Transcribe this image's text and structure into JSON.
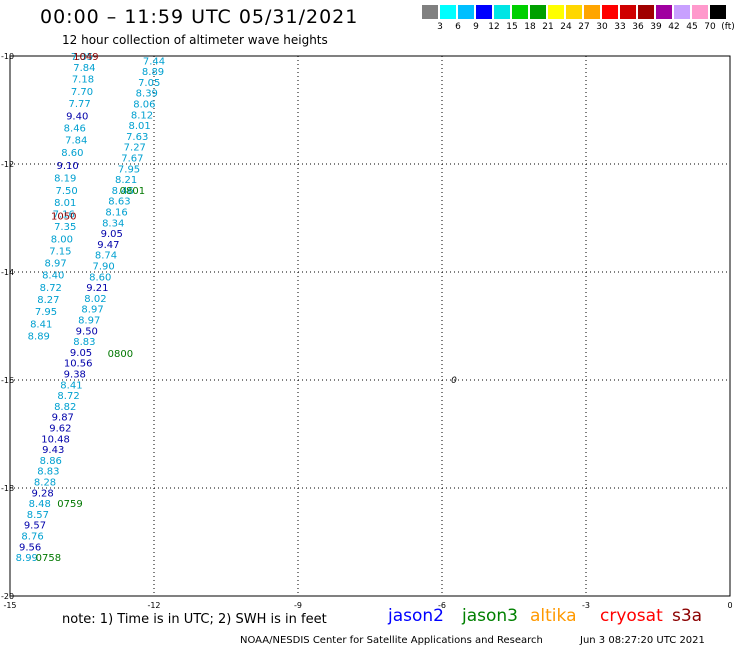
{
  "header": {
    "title": "00:00 – 11:59 UTC 05/31/2021",
    "subtitle": "12 hour collection of altimeter wave heights"
  },
  "legend": {
    "colors": [
      "#808080",
      "#00ffff",
      "#00bfff",
      "#0000ff",
      "#00e5e5",
      "#00d000",
      "#00a000",
      "#ffff00",
      "#ffd700",
      "#ffa500",
      "#ff0000",
      "#d00000",
      "#a00000",
      "#a000a0",
      "#c8a0ff",
      "#ff99cc",
      "#000000"
    ],
    "labels": [
      "3",
      "6",
      "9",
      "12",
      "15",
      "18",
      "21",
      "24",
      "27",
      "30",
      "33",
      "36",
      "39",
      "42",
      "45",
      "70",
      "(ft)"
    ]
  },
  "map": {
    "x_ticks": [
      "-15",
      "-12",
      "-9",
      "-6",
      "-3",
      "0"
    ],
    "y_ticks": [
      "-10",
      "-12",
      "-14",
      "-16",
      "-18",
      "-20"
    ],
    "marker_label": "0"
  },
  "chart_data": {
    "type": "scatter",
    "x_range": [
      -15,
      0
    ],
    "y_range": [
      -20,
      -10
    ],
    "grid": true,
    "text_color": "#00a0d0",
    "points": [
      {
        "x": -13.5,
        "y": -10.0,
        "v": "7.35",
        "c": "#00a0d0"
      },
      {
        "x": -13.45,
        "y": -10.2,
        "v": "7.84",
        "c": "#00a0d0"
      },
      {
        "x": -13.48,
        "y": -10.42,
        "v": "7.18",
        "c": "#00a0d0"
      },
      {
        "x": -13.5,
        "y": -10.65,
        "v": "7.70",
        "c": "#00a0d0"
      },
      {
        "x": -13.55,
        "y": -10.87,
        "v": "7.77",
        "c": "#00a0d0"
      },
      {
        "x": -13.6,
        "y": -11.1,
        "v": "9.40",
        "c": "#0000aa"
      },
      {
        "x": -13.65,
        "y": -11.32,
        "v": "8.46",
        "c": "#00a0d0"
      },
      {
        "x": -13.62,
        "y": -11.55,
        "v": "7.84",
        "c": "#00a0d0"
      },
      {
        "x": -13.7,
        "y": -11.78,
        "v": "8.60",
        "c": "#00a0d0"
      },
      {
        "x": -13.8,
        "y": -12.02,
        "v": "9.10",
        "c": "#0000aa"
      },
      {
        "x": -13.85,
        "y": -12.25,
        "v": "8.19",
        "c": "#00a0d0"
      },
      {
        "x": -13.82,
        "y": -12.48,
        "v": "7.50",
        "c": "#00a0d0"
      },
      {
        "x": -13.85,
        "y": -12.7,
        "v": "8.01",
        "c": "#00a0d0"
      },
      {
        "x": -13.88,
        "y": -12.92,
        "v": "7.16",
        "c": "#00a0d0"
      },
      {
        "x": -13.85,
        "y": -13.15,
        "v": "7.35",
        "c": "#00a0d0"
      },
      {
        "x": -13.92,
        "y": -13.38,
        "v": "8.00",
        "c": "#00a0d0"
      },
      {
        "x": -13.95,
        "y": -13.6,
        "v": "7.15",
        "c": "#00a0d0"
      },
      {
        "x": -14.05,
        "y": -13.82,
        "v": "8.97",
        "c": "#00a0d0"
      },
      {
        "x": -14.1,
        "y": -14.05,
        "v": "8.40",
        "c": "#00a0d0"
      },
      {
        "x": -14.15,
        "y": -14.28,
        "v": "8.72",
        "c": "#00a0d0"
      },
      {
        "x": -14.2,
        "y": -14.5,
        "v": "8.27",
        "c": "#00a0d0"
      },
      {
        "x": -14.25,
        "y": -14.72,
        "v": "7.95",
        "c": "#00a0d0"
      },
      {
        "x": -14.35,
        "y": -14.95,
        "v": "8.41",
        "c": "#00a0d0"
      },
      {
        "x": -14.4,
        "y": -15.18,
        "v": "8.89",
        "c": "#00a0d0"
      },
      {
        "x": -13.42,
        "y": -10.0,
        "v": "1049",
        "c": "#8b0000"
      },
      {
        "x": -13.88,
        "y": -12.95,
        "v": "1050",
        "c": "#8b0000"
      },
      {
        "x": -12.0,
        "y": -10.08,
        "v": "7.44",
        "c": "#00a0d0"
      },
      {
        "x": -12.02,
        "y": -10.28,
        "v": "8.89",
        "c": "#00a0d0"
      },
      {
        "x": -12.1,
        "y": -10.48,
        "v": "7.05",
        "c": "#00a0d0"
      },
      {
        "x": -12.15,
        "y": -10.68,
        "v": "8.39",
        "c": "#00a0d0"
      },
      {
        "x": -12.2,
        "y": -10.88,
        "v": "8.06",
        "c": "#00a0d0"
      },
      {
        "x": -12.25,
        "y": -11.08,
        "v": "8.12",
        "c": "#00a0d0"
      },
      {
        "x": -12.3,
        "y": -11.28,
        "v": "8.01",
        "c": "#00a0d0"
      },
      {
        "x": -12.35,
        "y": -11.48,
        "v": "7.63",
        "c": "#00a0d0"
      },
      {
        "x": -12.4,
        "y": -11.68,
        "v": "7.27",
        "c": "#00a0d0"
      },
      {
        "x": -12.45,
        "y": -11.88,
        "v": "7.67",
        "c": "#00a0d0"
      },
      {
        "x": -12.52,
        "y": -12.08,
        "v": "7.95",
        "c": "#00a0d0"
      },
      {
        "x": -12.58,
        "y": -12.28,
        "v": "8.21",
        "c": "#00a0d0"
      },
      {
        "x": -12.65,
        "y": -12.48,
        "v": "8.46",
        "c": "#00a0d0"
      },
      {
        "x": -12.72,
        "y": -12.68,
        "v": "8.63",
        "c": "#00a0d0"
      },
      {
        "x": -12.78,
        "y": -12.88,
        "v": "8.16",
        "c": "#00a0d0"
      },
      {
        "x": -12.85,
        "y": -13.08,
        "v": "8.34",
        "c": "#00a0d0"
      },
      {
        "x": -12.88,
        "y": -13.28,
        "v": "9.05",
        "c": "#0000aa"
      },
      {
        "x": -12.95,
        "y": -13.48,
        "v": "9.47",
        "c": "#0000aa"
      },
      {
        "x": -13.0,
        "y": -13.68,
        "v": "8.74",
        "c": "#00a0d0"
      },
      {
        "x": -13.05,
        "y": -13.88,
        "v": "7.90",
        "c": "#00a0d0"
      },
      {
        "x": -13.12,
        "y": -14.08,
        "v": "8.60",
        "c": "#00a0d0"
      },
      {
        "x": -13.18,
        "y": -14.28,
        "v": "9.21",
        "c": "#0000aa"
      },
      {
        "x": -13.22,
        "y": -14.48,
        "v": "8.02",
        "c": "#00a0d0"
      },
      {
        "x": -13.28,
        "y": -14.68,
        "v": "8.97",
        "c": "#00a0d0"
      },
      {
        "x": -13.35,
        "y": -14.88,
        "v": "8.97",
        "c": "#00a0d0"
      },
      {
        "x": -13.4,
        "y": -15.08,
        "v": "9.50",
        "c": "#0000aa"
      },
      {
        "x": -13.45,
        "y": -15.28,
        "v": "8.83",
        "c": "#00a0d0"
      },
      {
        "x": -13.52,
        "y": -15.48,
        "v": "9.05",
        "c": "#0000aa"
      },
      {
        "x": -13.58,
        "y": -15.68,
        "v": "10.56",
        "c": "#0000aa"
      },
      {
        "x": -13.65,
        "y": -15.88,
        "v": "9.38",
        "c": "#0000aa"
      },
      {
        "x": -13.72,
        "y": -16.08,
        "v": "8.41",
        "c": "#00a0d0"
      },
      {
        "x": -13.78,
        "y": -16.28,
        "v": "8.72",
        "c": "#00a0d0"
      },
      {
        "x": -13.85,
        "y": -16.48,
        "v": "8.82",
        "c": "#00a0d0"
      },
      {
        "x": -13.9,
        "y": -16.68,
        "v": "9.87",
        "c": "#0000aa"
      },
      {
        "x": -13.95,
        "y": -16.88,
        "v": "9.62",
        "c": "#0000aa"
      },
      {
        "x": -14.05,
        "y": -17.08,
        "v": "10.48",
        "c": "#0000aa"
      },
      {
        "x": -14.1,
        "y": -17.28,
        "v": "9.43",
        "c": "#0000aa"
      },
      {
        "x": -14.15,
        "y": -17.48,
        "v": "8.86",
        "c": "#00a0d0"
      },
      {
        "x": -14.2,
        "y": -17.68,
        "v": "8.83",
        "c": "#00a0d0"
      },
      {
        "x": -14.27,
        "y": -17.88,
        "v": "8.28",
        "c": "#00a0d0"
      },
      {
        "x": -14.32,
        "y": -18.08,
        "v": "9.28",
        "c": "#0000aa"
      },
      {
        "x": -14.38,
        "y": -18.28,
        "v": "8.48",
        "c": "#00a0d0"
      },
      {
        "x": -14.42,
        "y": -18.48,
        "v": "8.57",
        "c": "#00a0d0"
      },
      {
        "x": -14.48,
        "y": -18.68,
        "v": "9.57",
        "c": "#0000aa"
      },
      {
        "x": -14.53,
        "y": -18.88,
        "v": "8.76",
        "c": "#00a0d0"
      },
      {
        "x": -14.58,
        "y": -19.08,
        "v": "9.56",
        "c": "#0000aa"
      },
      {
        "x": -14.65,
        "y": -19.28,
        "v": "8.99",
        "c": "#00a0d0"
      },
      {
        "x": -12.45,
        "y": -12.48,
        "v": "0801",
        "c": "#007700"
      },
      {
        "x": -12.7,
        "y": -15.5,
        "v": "0800",
        "c": "#007700"
      },
      {
        "x": -13.75,
        "y": -18.28,
        "v": "0759",
        "c": "#007700"
      },
      {
        "x": -14.2,
        "y": -19.28,
        "v": "0758",
        "c": "#007700"
      }
    ],
    "marker": {
      "x": -5.75,
      "y": -16.0
    }
  },
  "footer": {
    "note": "note:  1) Time is in UTC;  2) SWH is in feet",
    "satellites": [
      {
        "name": "jason2",
        "color": "#0000ff"
      },
      {
        "name": "jason3",
        "color": "#008000"
      },
      {
        "name": "altika",
        "color": "#ff9900"
      },
      {
        "name": "cryosat",
        "color": "#ff0000"
      },
      {
        "name": "s3a",
        "color": "#8b0000"
      }
    ],
    "credit": "NOAA/NESDIS Center for Satellite Applications and Research",
    "timestamp": "Jun  3 08:27:20 UTC 2021"
  }
}
